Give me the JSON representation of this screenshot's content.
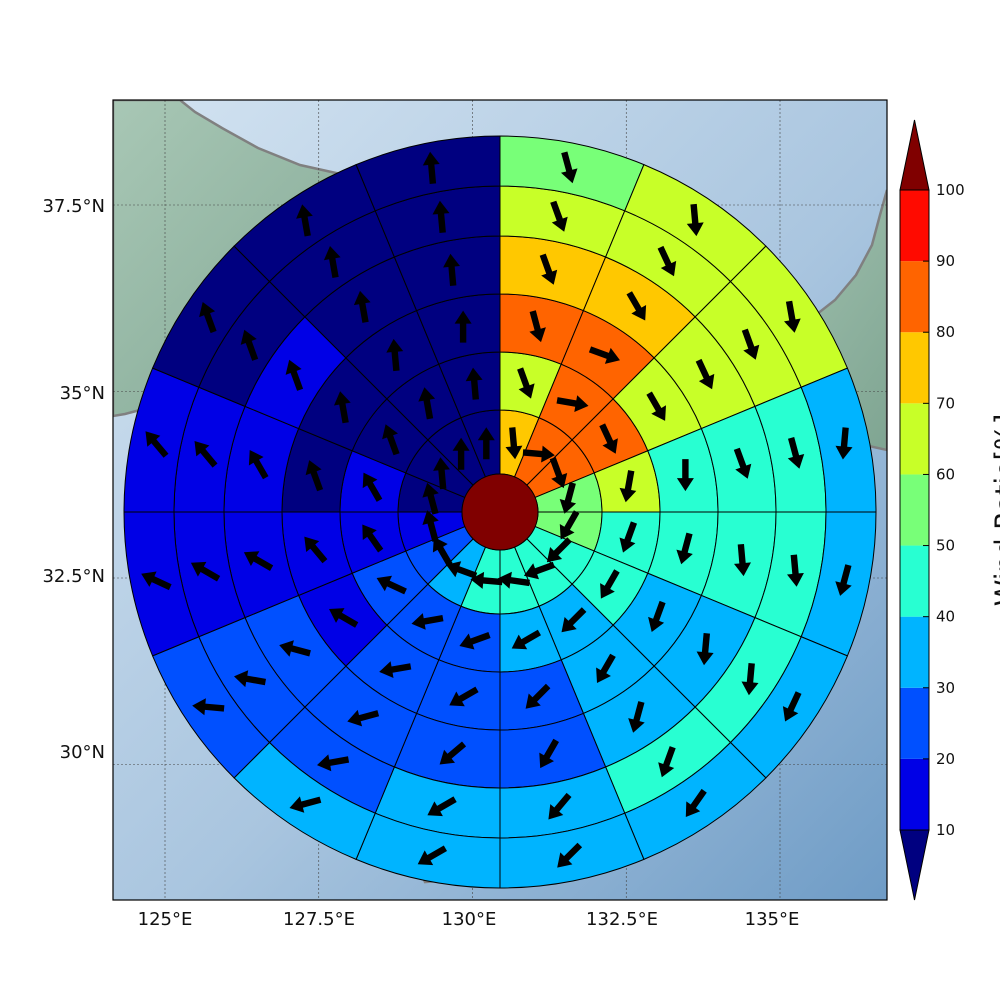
{
  "map": {
    "lon_ticks": [
      "125°E",
      "127.5°E",
      "130°E",
      "132.5°E",
      "135°E"
    ],
    "lat_ticks": [
      "37.5°N",
      "35°N",
      "32.5°N",
      "30°N"
    ],
    "lon_values": [
      125,
      127.5,
      130,
      132.5,
      135
    ],
    "lat_values": [
      37.5,
      35,
      32.5,
      30
    ],
    "colors": {
      "ocean_light": "#c9dcee",
      "ocean_deep": "#7fa6cd",
      "land": "#8fb3a2",
      "coastline": "#808080",
      "grid": "#444444"
    }
  },
  "colorbar": {
    "label": "Wind Ratio[%]",
    "tick_labels": [
      "10",
      "20",
      "30",
      "40",
      "50",
      "60",
      "70",
      "80",
      "90",
      "100"
    ],
    "bins": [
      {
        "from": 10,
        "to": 20,
        "color": "#0000e6"
      },
      {
        "from": 20,
        "to": 30,
        "color": "#0050ff"
      },
      {
        "from": 30,
        "to": 40,
        "color": "#00b4ff"
      },
      {
        "from": 40,
        "to": 50,
        "color": "#28ffd2"
      },
      {
        "from": 50,
        "to": 60,
        "color": "#78ff78"
      },
      {
        "from": 60,
        "to": 70,
        "color": "#c8ff28"
      },
      {
        "from": 70,
        "to": 80,
        "color": "#ffc800"
      },
      {
        "from": 80,
        "to": 90,
        "color": "#ff6400"
      },
      {
        "from": 90,
        "to": 100,
        "color": "#ff0a00"
      }
    ],
    "under_color": "#000080",
    "over_color": "#800000"
  },
  "chart_data": {
    "type": "heatmap",
    "layout": "polar",
    "center_ratio": 100,
    "sectors": 16,
    "rings": [
      {
        "ratios": [
          75,
          85,
          85,
          55,
          55,
          45,
          45,
          45,
          40,
          35,
          25,
          15,
          5,
          5,
          5,
          0
        ],
        "arrows": [
          175,
          95,
          160,
          195,
          210,
          225,
          250,
          278,
          275,
          290,
          330,
          345,
          345,
          355,
          360,
          360
        ]
      },
      {
        "ratios": [
          65,
          85,
          85,
          65,
          45,
          45,
          35,
          30,
          25,
          25,
          25,
          10,
          10,
          5,
          0,
          0
        ],
        "arrows": [
          160,
          100,
          155,
          190,
          200,
          210,
          225,
          240,
          250,
          260,
          295,
          325,
          330,
          340,
          350,
          355
        ]
      },
      {
        "ratios": [
          85,
          85,
          65,
          45,
          45,
          35,
          30,
          25,
          25,
          25,
          15,
          10,
          5,
          5,
          5,
          0
        ],
        "arrows": [
          165,
          110,
          150,
          180,
          195,
          200,
          210,
          225,
          240,
          260,
          300,
          320,
          340,
          350,
          355,
          360
        ]
      },
      {
        "ratios": [
          70,
          70,
          65,
          40,
          40,
          35,
          30,
          25,
          25,
          25,
          20,
          15,
          10,
          10,
          5,
          0
        ],
        "arrows": [
          160,
          150,
          155,
          160,
          175,
          185,
          195,
          210,
          230,
          255,
          285,
          300,
          330,
          340,
          350,
          355
        ]
      },
      {
        "ratios": [
          65,
          65,
          65,
          45,
          45,
          45,
          40,
          35,
          30,
          25,
          20,
          15,
          10,
          5,
          5,
          0
        ],
        "arrows": [
          160,
          155,
          160,
          165,
          175,
          185,
          200,
          220,
          240,
          260,
          280,
          300,
          320,
          340,
          350,
          355
        ]
      },
      {
        "ratios": [
          55,
          65,
          60,
          35,
          35,
          35,
          35,
          30,
          30,
          30,
          25,
          15,
          10,
          5,
          5,
          0
        ],
        "arrows": [
          165,
          175,
          170,
          185,
          195,
          205,
          215,
          225,
          240,
          255,
          275,
          295,
          320,
          340,
          350,
          355
        ]
      }
    ]
  }
}
